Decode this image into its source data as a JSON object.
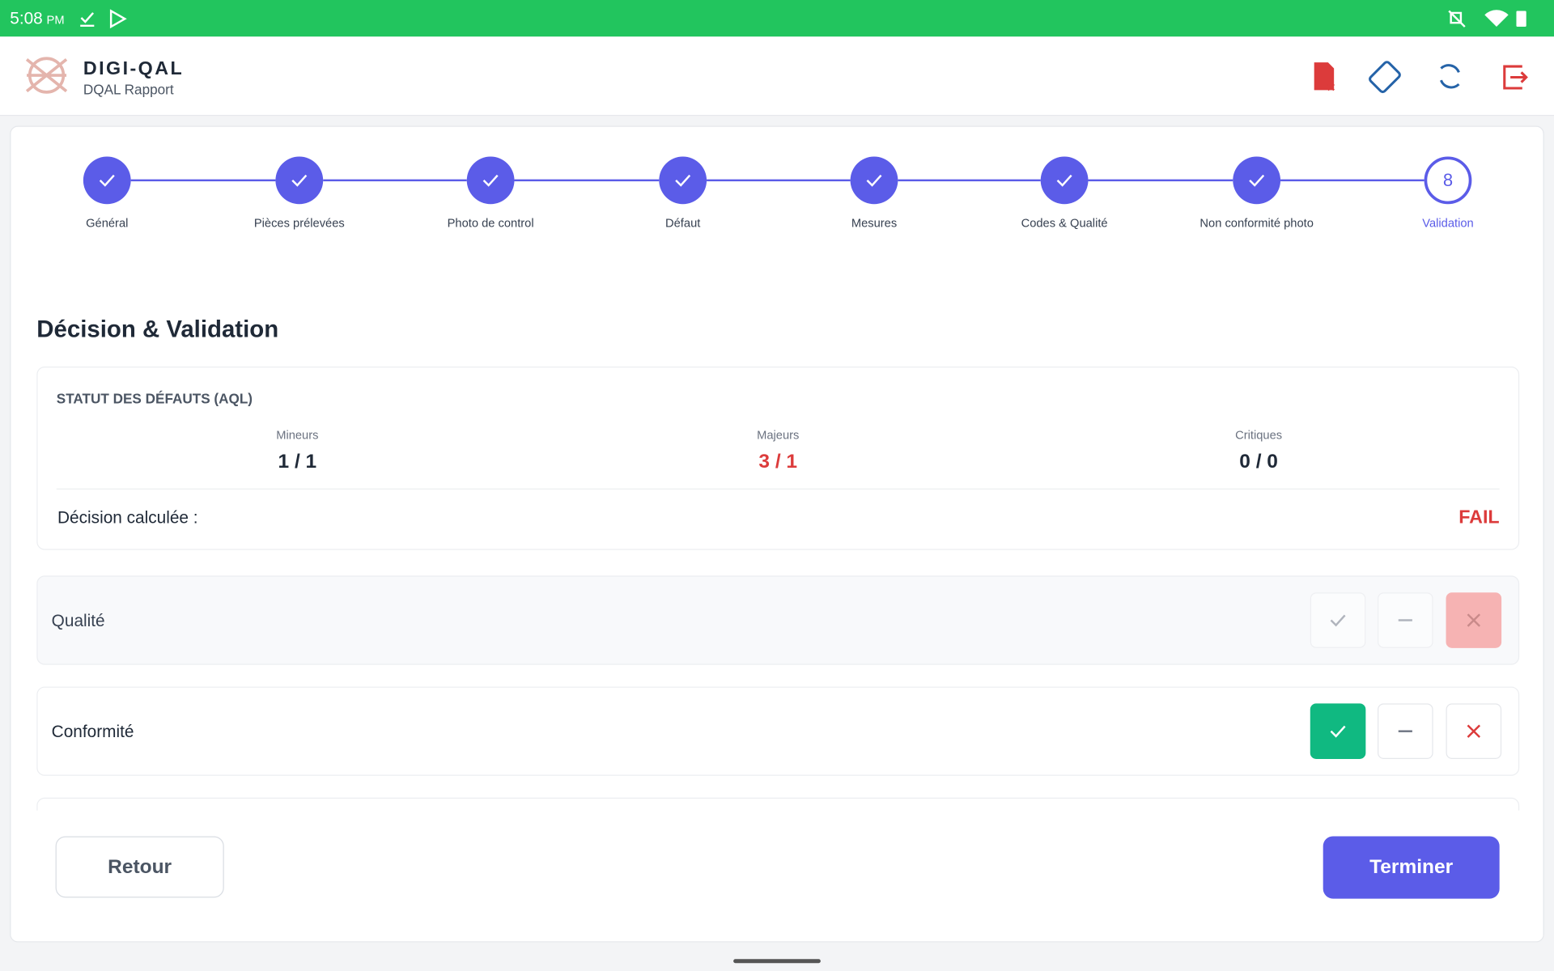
{
  "status_bar": {
    "time": "5:08",
    "meridiem": "PM"
  },
  "header": {
    "title": "DIGI-QAL",
    "subtitle": "DQAL Rapport"
  },
  "stepper": {
    "steps": [
      "Général",
      "Pièces prélevées",
      "Photo de control",
      "Défaut",
      "Mesures",
      "Codes & Qualité",
      "Non conformité photo",
      "Validation"
    ],
    "current_number": "8"
  },
  "section_title": "Décision & Validation",
  "aql": {
    "heading": "STATUT DES DÉFAUTS (AQL)",
    "columns": [
      {
        "label": "Mineurs",
        "value": "1 / 1"
      },
      {
        "label": "Majeurs",
        "value": "3 / 1"
      },
      {
        "label": "Critiques",
        "value": "0 / 0"
      }
    ],
    "decision_label": "Décision calculée :",
    "decision_value": "FAIL"
  },
  "rows": [
    {
      "label": "Qualité"
    },
    {
      "label": "Conformité"
    }
  ],
  "buttons": {
    "back": "Retour",
    "finish": "Terminer"
  }
}
